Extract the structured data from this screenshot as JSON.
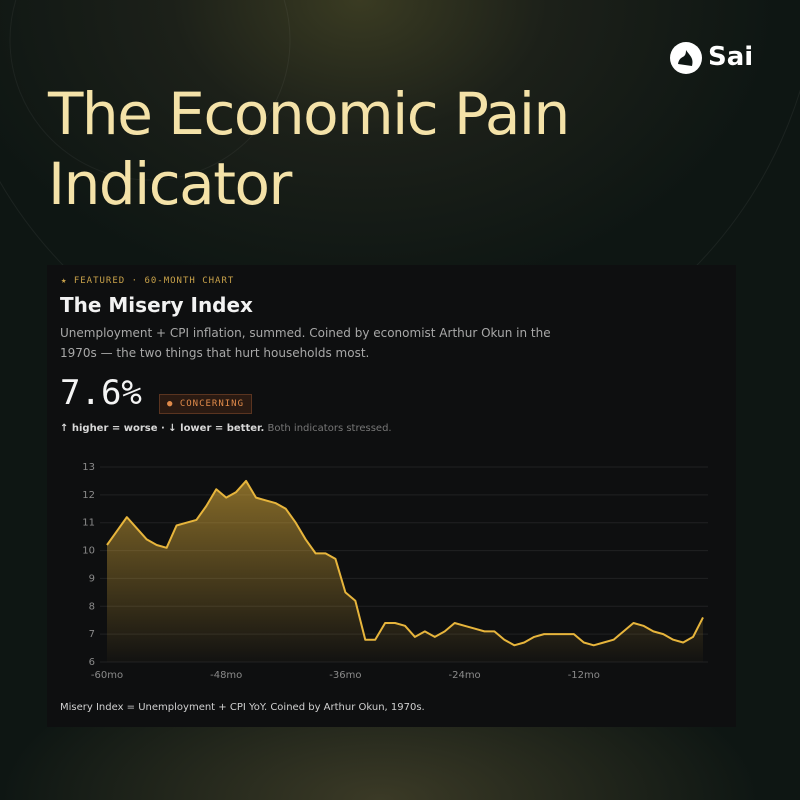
{
  "brand": "Sai",
  "headline": [
    "The Economic Pain",
    "Indicator"
  ],
  "card": {
    "eyebrow": "★ FEATURED · 60-MONTH CHART",
    "title": "The Misery Index",
    "description": [
      "Unemployment + CPI inflation, summed. Coined by economist Arthur Okun in the",
      "1970s — the two things that hurt households most."
    ],
    "current_value": "7.6%",
    "status": "● CONCERNING",
    "legend_note": "↑ higher = worse · ↓ lower = better.",
    "legend_note_extra": "Both indicators stressed.",
    "footnote": "Misery Index = Unemployment + CPI YoY. Coined by Arthur Okun, 1970s."
  },
  "chart_data": {
    "type": "line",
    "x": [
      -60,
      -59,
      -58,
      -57,
      -56,
      -55,
      -54,
      -53,
      -52,
      -51,
      -50,
      -49,
      -48,
      -47,
      -46,
      -45,
      -44,
      -43,
      -42,
      -41,
      -40,
      -39,
      -38,
      -37,
      -36,
      -35,
      -34,
      -33,
      -32,
      -31,
      -30,
      -29,
      -28,
      -27,
      -26,
      -25,
      -24,
      -23,
      -22,
      -21,
      -20,
      -19,
      -18,
      -17,
      -16,
      -15,
      -14,
      -13,
      -12,
      -11,
      -10,
      -9,
      -8,
      -7,
      -6,
      -5,
      -4,
      -3,
      -2,
      -1,
      0
    ],
    "series": [
      {
        "color": "#e7b53c",
        "values": [
          10.2,
          10.7,
          11.2,
          10.8,
          10.4,
          10.2,
          10.1,
          10.9,
          11.0,
          11.1,
          11.6,
          12.2,
          11.9,
          12.1,
          12.5,
          11.9,
          11.8,
          11.7,
          11.5,
          11.0,
          10.4,
          9.9,
          9.9,
          9.7,
          8.5,
          8.2,
          6.8,
          6.8,
          7.4,
          7.4,
          7.3,
          6.9,
          7.1,
          6.9,
          7.1,
          7.4,
          7.3,
          7.2,
          7.1,
          7.1,
          6.8,
          6.6,
          6.7,
          6.9,
          7.0,
          7.0,
          7.0,
          7.0,
          6.7,
          6.6,
          6.7,
          6.8,
          7.1,
          7.4,
          7.3,
          7.1,
          7.0,
          6.8,
          6.7,
          6.9,
          7.6
        ]
      }
    ],
    "xlim": [
      -60,
      0
    ],
    "xticks": [
      {
        "value": -60,
        "label": "-60mo"
      },
      {
        "value": -48,
        "label": "-48mo"
      },
      {
        "value": -36,
        "label": "-36mo"
      },
      {
        "value": -24,
        "label": "-24mo"
      },
      {
        "value": -12,
        "label": "-12mo"
      }
    ],
    "ylim": [
      6,
      13
    ],
    "yticks": [
      6,
      7,
      8,
      9,
      10,
      11,
      12,
      13
    ],
    "grid": true
  }
}
